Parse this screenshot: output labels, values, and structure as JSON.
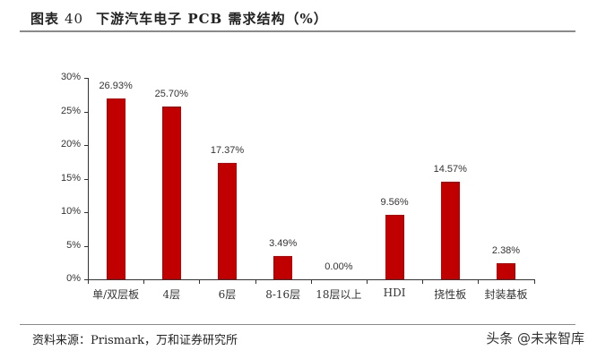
{
  "header": {
    "figure_label": "图表",
    "figure_number": "40",
    "title": "下游汽车电子 PCB 需求结构（%）"
  },
  "footer": {
    "source": "资料来源：Prismark，万和证券研究所",
    "watermark": "头条 @未来智库"
  },
  "colors": {
    "bar": "#c00000",
    "axis": "#333333",
    "rule": "#8a8a8a"
  },
  "chart_data": {
    "type": "bar",
    "title": "下游汽车电子 PCB 需求结构（%）",
    "xlabel": "",
    "ylabel": "",
    "ylim": [
      0,
      30
    ],
    "yticks": [
      "0%",
      "5%",
      "10%",
      "15%",
      "20%",
      "25%",
      "30%"
    ],
    "grid": false,
    "legend": null,
    "categories": [
      "单/双层板",
      "4层",
      "6层",
      "8-16层",
      "18层以上",
      "HDI",
      "挠性板",
      "封装基板"
    ],
    "values": [
      26.93,
      25.7,
      17.37,
      3.49,
      0.0,
      9.56,
      14.57,
      2.38
    ],
    "value_labels": [
      "26.93%",
      "25.70%",
      "17.37%",
      "3.49%",
      "0.00%",
      "9.56%",
      "14.57%",
      "2.38%"
    ]
  }
}
